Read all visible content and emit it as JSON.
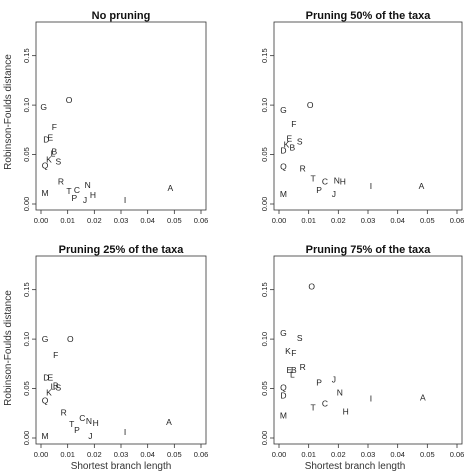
{
  "figure": {
    "ylabel": "Robinson-Foulds distance",
    "xlabel": "Shortest branch length"
  },
  "chart_data": [
    {
      "type": "scatter",
      "title": "No pruning",
      "xlim": [
        0,
        0.06
      ],
      "ylim": [
        0,
        0.18
      ],
      "xticks": [
        "0.00",
        "0.01",
        "0.02",
        "0.03",
        "0.04",
        "0.05",
        "0.06"
      ],
      "yticks": [
        "0.00",
        "0.05",
        "0.10",
        "0.15"
      ],
      "points": [
        {
          "label": "O",
          "x": 0.0105,
          "y": 0.105
        },
        {
          "label": "G",
          "x": 0.001,
          "y": 0.098
        },
        {
          "label": "F",
          "x": 0.005,
          "y": 0.078
        },
        {
          "label": "D",
          "x": 0.002,
          "y": 0.065
        },
        {
          "label": "E",
          "x": 0.0035,
          "y": 0.067
        },
        {
          "label": "B",
          "x": 0.005,
          "y": 0.053
        },
        {
          "label": "L",
          "x": 0.0045,
          "y": 0.051
        },
        {
          "label": "K",
          "x": 0.003,
          "y": 0.045
        },
        {
          "label": "S",
          "x": 0.0065,
          "y": 0.043
        },
        {
          "label": "Q",
          "x": 0.0015,
          "y": 0.039
        },
        {
          "label": "R",
          "x": 0.0075,
          "y": 0.023
        },
        {
          "label": "T",
          "x": 0.0105,
          "y": 0.013
        },
        {
          "label": "C",
          "x": 0.0135,
          "y": 0.014
        },
        {
          "label": "P",
          "x": 0.0125,
          "y": 0.006
        },
        {
          "label": "N",
          "x": 0.0175,
          "y": 0.019
        },
        {
          "label": "H",
          "x": 0.0195,
          "y": 0.009
        },
        {
          "label": "J",
          "x": 0.0165,
          "y": 0.004
        },
        {
          "label": "M",
          "x": 0.0015,
          "y": 0.011
        },
        {
          "label": "I",
          "x": 0.0315,
          "y": 0.004
        },
        {
          "label": "A",
          "x": 0.0485,
          "y": 0.016
        }
      ]
    },
    {
      "type": "scatter",
      "title": "Pruning 50% of the taxa",
      "xlim": [
        0,
        0.06
      ],
      "ylim": [
        0,
        0.18
      ],
      "xticks": [
        "0.00",
        "0.01",
        "0.02",
        "0.03",
        "0.04",
        "0.05",
        "0.06"
      ],
      "yticks": [
        "0.00",
        "0.05",
        "0.10",
        "0.15"
      ],
      "points": [
        {
          "label": "O",
          "x": 0.0105,
          "y": 0.1
        },
        {
          "label": "G",
          "x": 0.0015,
          "y": 0.095
        },
        {
          "label": "F",
          "x": 0.005,
          "y": 0.081
        },
        {
          "label": "E",
          "x": 0.0035,
          "y": 0.066
        },
        {
          "label": "K",
          "x": 0.0025,
          "y": 0.06
        },
        {
          "label": "B",
          "x": 0.0045,
          "y": 0.057
        },
        {
          "label": "S",
          "x": 0.007,
          "y": 0.063
        },
        {
          "label": "D",
          "x": 0.0015,
          "y": 0.054
        },
        {
          "label": "Q",
          "x": 0.0015,
          "y": 0.038
        },
        {
          "label": "R",
          "x": 0.008,
          "y": 0.036
        },
        {
          "label": "T",
          "x": 0.0115,
          "y": 0.026
        },
        {
          "label": "C",
          "x": 0.0155,
          "y": 0.023
        },
        {
          "label": "N",
          "x": 0.0195,
          "y": 0.024
        },
        {
          "label": "H",
          "x": 0.0215,
          "y": 0.023
        },
        {
          "label": "P",
          "x": 0.0135,
          "y": 0.014
        },
        {
          "label": "J",
          "x": 0.0185,
          "y": 0.01
        },
        {
          "label": "M",
          "x": 0.0015,
          "y": 0.01
        },
        {
          "label": "I",
          "x": 0.031,
          "y": 0.018
        },
        {
          "label": "A",
          "x": 0.048,
          "y": 0.018
        }
      ]
    },
    {
      "type": "scatter",
      "title": "Pruning 25% of the taxa",
      "xlim": [
        0,
        0.06
      ],
      "ylim": [
        0,
        0.18
      ],
      "xticks": [
        "0.00",
        "0.01",
        "0.02",
        "0.03",
        "0.04",
        "0.05",
        "0.06"
      ],
      "yticks": [
        "0.00",
        "0.05",
        "0.10",
        "0.15"
      ],
      "points": [
        {
          "label": "G",
          "x": 0.0015,
          "y": 0.1
        },
        {
          "label": "O",
          "x": 0.011,
          "y": 0.1
        },
        {
          "label": "F",
          "x": 0.0055,
          "y": 0.084
        },
        {
          "label": "D",
          "x": 0.002,
          "y": 0.061
        },
        {
          "label": "E",
          "x": 0.0035,
          "y": 0.061
        },
        {
          "label": "B",
          "x": 0.0055,
          "y": 0.053
        },
        {
          "label": "L",
          "x": 0.0045,
          "y": 0.052
        },
        {
          "label": "S",
          "x": 0.0065,
          "y": 0.051
        },
        {
          "label": "K",
          "x": 0.003,
          "y": 0.046
        },
        {
          "label": "Q",
          "x": 0.0015,
          "y": 0.038
        },
        {
          "label": "R",
          "x": 0.0085,
          "y": 0.026
        },
        {
          "label": "T",
          "x": 0.0115,
          "y": 0.014
        },
        {
          "label": "C",
          "x": 0.0155,
          "y": 0.02
        },
        {
          "label": "P",
          "x": 0.0135,
          "y": 0.008
        },
        {
          "label": "N",
          "x": 0.018,
          "y": 0.017
        },
        {
          "label": "H",
          "x": 0.0205,
          "y": 0.015
        },
        {
          "label": "J",
          "x": 0.0185,
          "y": 0.002
        },
        {
          "label": "M",
          "x": 0.0015,
          "y": 0.002
        },
        {
          "label": "I",
          "x": 0.0315,
          "y": 0.006
        },
        {
          "label": "A",
          "x": 0.048,
          "y": 0.016
        }
      ]
    },
    {
      "type": "scatter",
      "title": "Pruning 75% of the taxa",
      "xlim": [
        0,
        0.06
      ],
      "ylim": [
        0,
        0.18
      ],
      "xticks": [
        "0.00",
        "0.01",
        "0.02",
        "0.03",
        "0.04",
        "0.05",
        "0.06"
      ],
      "yticks": [
        "0.00",
        "0.05",
        "0.10",
        "0.15"
      ],
      "points": [
        {
          "label": "O",
          "x": 0.011,
          "y": 0.153
        },
        {
          "label": "G",
          "x": 0.0015,
          "y": 0.106
        },
        {
          "label": "S",
          "x": 0.007,
          "y": 0.101
        },
        {
          "label": "K",
          "x": 0.003,
          "y": 0.088
        },
        {
          "label": "F",
          "x": 0.005,
          "y": 0.086
        },
        {
          "label": "R",
          "x": 0.008,
          "y": 0.072
        },
        {
          "label": "E",
          "x": 0.0035,
          "y": 0.069
        },
        {
          "label": "B",
          "x": 0.005,
          "y": 0.069
        },
        {
          "label": "L",
          "x": 0.0045,
          "y": 0.064
        },
        {
          "label": "J",
          "x": 0.0185,
          "y": 0.059
        },
        {
          "label": "P",
          "x": 0.0135,
          "y": 0.056
        },
        {
          "label": "Q",
          "x": 0.0015,
          "y": 0.051
        },
        {
          "label": "D",
          "x": 0.0015,
          "y": 0.043
        },
        {
          "label": "N",
          "x": 0.0205,
          "y": 0.046
        },
        {
          "label": "C",
          "x": 0.0155,
          "y": 0.035
        },
        {
          "label": "T",
          "x": 0.0115,
          "y": 0.031
        },
        {
          "label": "H",
          "x": 0.0225,
          "y": 0.027
        },
        {
          "label": "M",
          "x": 0.0015,
          "y": 0.023
        },
        {
          "label": "I",
          "x": 0.031,
          "y": 0.04
        },
        {
          "label": "A",
          "x": 0.0485,
          "y": 0.041
        }
      ]
    }
  ]
}
